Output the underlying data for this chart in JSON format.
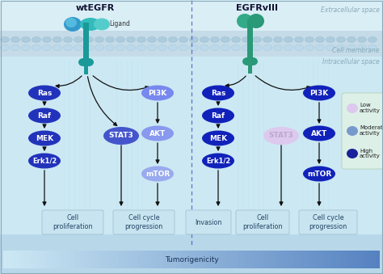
{
  "bg_top": "#daeef5",
  "bg_membrane": "#c0d8e5",
  "bg_intra": "#cce8f2",
  "bg_bottom": "#b5d8ea",
  "legend_bg": "#ddf0e8",
  "wt_label": "wtEGFR",
  "egfr_label": "EGFRvIII",
  "ligand_label": "Ligand",
  "extracellular_text": "Extracellular space",
  "membrane_text": "Cell membrane",
  "intracellular_text": "Intracellular space",
  "tumorigenicity_text": "Tumorigenicity",
  "arrow_color": "#111111",
  "dashed_line_color": "#4455bb",
  "receptor_teal": "#1a9999",
  "receptor_blue_left": "#3399cc",
  "receptor_green": "#2a9977",
  "wt_ras_color": "#2233bb",
  "wt_stat3_color": "#4455cc",
  "wt_pi3k_color": "#7788ee",
  "wt_akt_color": "#8899ee",
  "wt_mtor_color": "#99aaee",
  "egfr_ras_color": "#1122bb",
  "egfr_stat3_color": "#ddc8ee",
  "egfr_stat3_text": "#bbaacc",
  "egfr_pi3k_color": "#1122bb",
  "egfr_akt_color": "#1122bb",
  "egfr_mtor_color": "#1122bb",
  "box_color": "#c8e4f0",
  "box_edge": "#99bbcc",
  "low_activity_color": "#ddc8ee",
  "mid_activity_color": "#7799cc",
  "high_activity_color": "#1a2299",
  "node_text": "#ffffff",
  "space_text_color": "#88aabb",
  "title_color": "#111133",
  "box_text_color": "#224466"
}
